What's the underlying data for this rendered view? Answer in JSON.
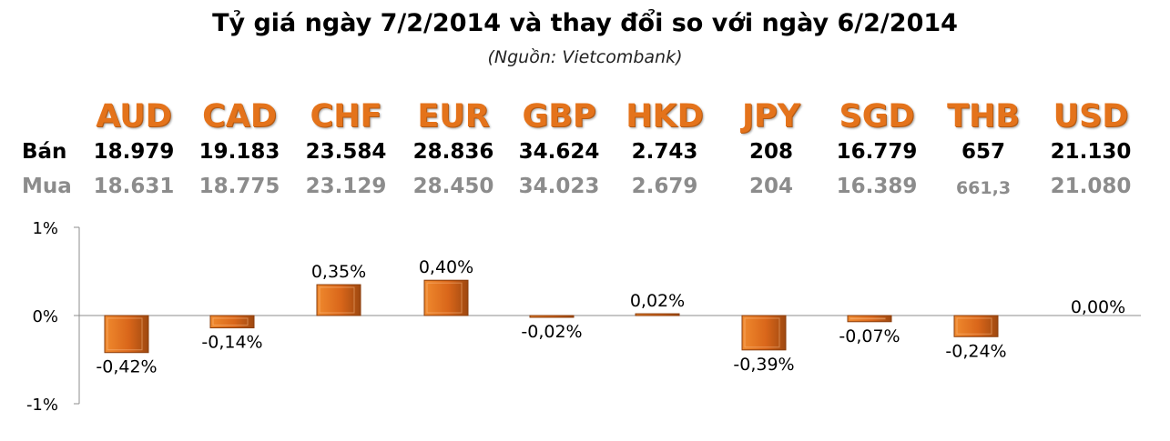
{
  "title": "Tỷ giá ngày 7/2/2014 và thay đổi so với ngày 6/2/2014",
  "subtitle": "(Nguồn: Vietcombank)",
  "rows": {
    "sell_label": "Bán",
    "buy_label": "Mua"
  },
  "colors": {
    "accent": "#e4731b",
    "bar_dark": "#a84d10",
    "buy_text": "#8c8c8c"
  },
  "currencies": [
    {
      "code": "AUD",
      "sell": "18.979",
      "buy": "18.631"
    },
    {
      "code": "CAD",
      "sell": "19.183",
      "buy": "18.775"
    },
    {
      "code": "CHF",
      "sell": "23.584",
      "buy": "23.129"
    },
    {
      "code": "EUR",
      "sell": "28.836",
      "buy": "28.450"
    },
    {
      "code": "GBP",
      "sell": "34.624",
      "buy": "34.023"
    },
    {
      "code": "HKD",
      "sell": "2.743",
      "buy": "2.679"
    },
    {
      "code": "JPY",
      "sell": "208",
      "buy": "204"
    },
    {
      "code": "SGD",
      "sell": "16.779",
      "buy": "16.389"
    },
    {
      "code": "THB",
      "sell": "657",
      "buy": "661,3"
    },
    {
      "code": "USD",
      "sell": "21.130",
      "buy": "21.080"
    }
  ],
  "chart_data": {
    "type": "bar",
    "categories": [
      "AUD",
      "CAD",
      "CHF",
      "EUR",
      "GBP",
      "HKD",
      "JPY",
      "SGD",
      "THB",
      "USD"
    ],
    "values": [
      -0.42,
      -0.14,
      0.35,
      0.4,
      -0.02,
      0.02,
      -0.39,
      -0.07,
      -0.24,
      0.0
    ],
    "data_labels": [
      "-0,42%",
      "-0,14%",
      "0,35%",
      "0,40%",
      "-0,02%",
      "0,02%",
      "-0,39%",
      "-0,07%",
      "-0,24%",
      "0,00%"
    ],
    "ylim": [
      -1,
      1
    ],
    "yticks": [
      1,
      0,
      -1
    ],
    "ytick_labels": [
      "1%",
      "0%",
      "-1%"
    ],
    "grid": false,
    "xlabel": "",
    "ylabel": ""
  }
}
